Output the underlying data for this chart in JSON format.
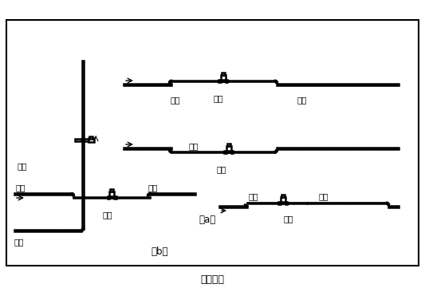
{
  "title": "图（四）",
  "label_a": "（a）",
  "label_b": "（b）",
  "bg_color": "#ffffff",
  "lw": 1.8,
  "g": 0.008,
  "r": 0.022
}
